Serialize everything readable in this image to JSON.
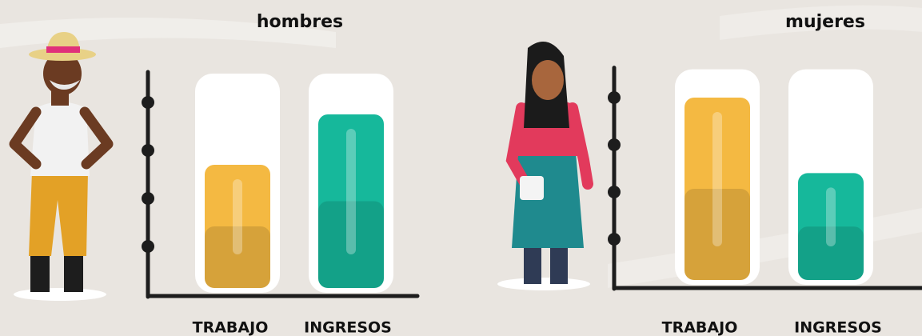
{
  "chart_data": [
    {
      "type": "bar",
      "title": "hombres",
      "categories": [
        "TRABAJO",
        "INGRESOS"
      ],
      "values": [
        2.7,
        3.75
      ],
      "colors": [
        "#f4b942",
        "#16b89b"
      ],
      "ylim": [
        0,
        4.6
      ],
      "yticks": [
        1,
        2,
        3,
        4
      ]
    },
    {
      "type": "bar",
      "title": "mujeres",
      "categories": [
        "TRABAJO",
        "INGRESOS"
      ],
      "values": [
        4.0,
        2.4
      ],
      "colors": [
        "#f4b942",
        "#16b89b"
      ],
      "ylim": [
        0,
        4.6
      ],
      "yticks": [
        1,
        2,
        3,
        4
      ]
    }
  ]
}
